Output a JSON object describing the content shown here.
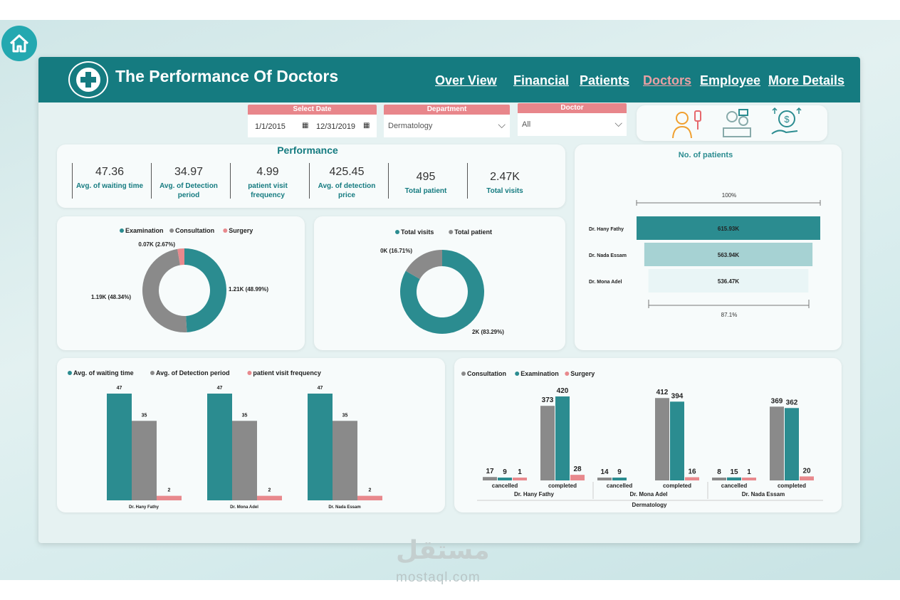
{
  "header": {
    "title": "The Performance Of Doctors",
    "nav": [
      "Over View",
      "Financial",
      "Patients",
      "Doctors",
      "Employee",
      "More Details"
    ],
    "active_nav": "Doctors"
  },
  "filters": {
    "date": {
      "label": "Select Date",
      "start": "1/1/2015",
      "end": "12/31/2019"
    },
    "department": {
      "label": "Department",
      "value": "Dermatology"
    },
    "doctor": {
      "label": "Doctor",
      "value": "All"
    }
  },
  "performance": {
    "title": "Performance",
    "kpis": [
      {
        "value": "47.36",
        "label": "Avg. of waiting time"
      },
      {
        "value": "34.97",
        "label": "Avg. of Detection period"
      },
      {
        "value": "4.99",
        "label": "patient visit frequency"
      },
      {
        "value": "425.45",
        "label": "Avg. of detection price"
      },
      {
        "value": "495",
        "label": "Total patient"
      },
      {
        "value": "2.47K",
        "label": "Total visits"
      }
    ]
  },
  "colors": {
    "teal": "#2b8c90",
    "gray": "#8a8a8a",
    "pink": "#e8898d",
    "header": "#157b80"
  },
  "watermark": {
    "text": "mostaql.com",
    "arabic": "مستقل"
  },
  "chart_data": [
    {
      "type": "pie",
      "variant": "donut",
      "legend": [
        "Examination",
        "Consultation",
        "Surgery"
      ],
      "slices": [
        {
          "name": "Examination",
          "value": 1210,
          "label": "1.21K (48.99%)"
        },
        {
          "name": "Consultation",
          "value": 1190,
          "label": "1.19K (48.34%)"
        },
        {
          "name": "Surgery",
          "value": 66,
          "label": "0.07K (2.67%)"
        }
      ]
    },
    {
      "type": "pie",
      "variant": "donut",
      "legend": [
        "Total visits",
        "Total patient"
      ],
      "slices": [
        {
          "name": "Total visits",
          "value": 83.29,
          "label": "2K (83.29%)"
        },
        {
          "name": "Total patient",
          "value": 16.71,
          "label": "0K (16.71%)"
        }
      ]
    },
    {
      "type": "bar",
      "orientation": "horizontal",
      "title": "No. of patients",
      "top_label": "100%",
      "bottom_label": "87.1%",
      "categories": [
        "Dr. Hany Fathy",
        "Dr. Nada Essam",
        "Dr. Mona Adel"
      ],
      "values": [
        615.93,
        563.94,
        536.47
      ],
      "value_labels": [
        "615.93K",
        "563.94K",
        "536.47K"
      ]
    },
    {
      "type": "bar",
      "legend_placement": "top-left",
      "categories": [
        "Dr. Hany Fathy",
        "Dr. Mona Adel",
        "Dr. Nada Essam"
      ],
      "series": [
        {
          "name": "Avg. of waiting time",
          "values": [
            47,
            47,
            47
          ]
        },
        {
          "name": "Avg. of Detection period",
          "values": [
            35,
            35,
            35
          ]
        },
        {
          "name": "patient visit frequency",
          "values": [
            2,
            2,
            2
          ]
        }
      ]
    },
    {
      "type": "bar",
      "legend_placement": "top-left",
      "groups": [
        {
          "doctor": "Dr. Hany Fathy",
          "statuses": [
            "cancelled",
            "completed"
          ]
        },
        {
          "doctor": "Dr. Mona Adel",
          "statuses": [
            "cancelled",
            "completed"
          ]
        },
        {
          "doctor": "Dr. Nada Essam",
          "statuses": [
            "cancelled",
            "completed"
          ]
        }
      ],
      "department": "Dermatology",
      "series": [
        {
          "name": "Consultation",
          "values": [
            17,
            373,
            14,
            412,
            8,
            369
          ]
        },
        {
          "name": "Examination",
          "values": [
            9,
            420,
            9,
            394,
            15,
            362
          ]
        },
        {
          "name": "Surgery",
          "values": [
            1,
            28,
            null,
            16,
            1,
            20
          ]
        }
      ]
    }
  ]
}
